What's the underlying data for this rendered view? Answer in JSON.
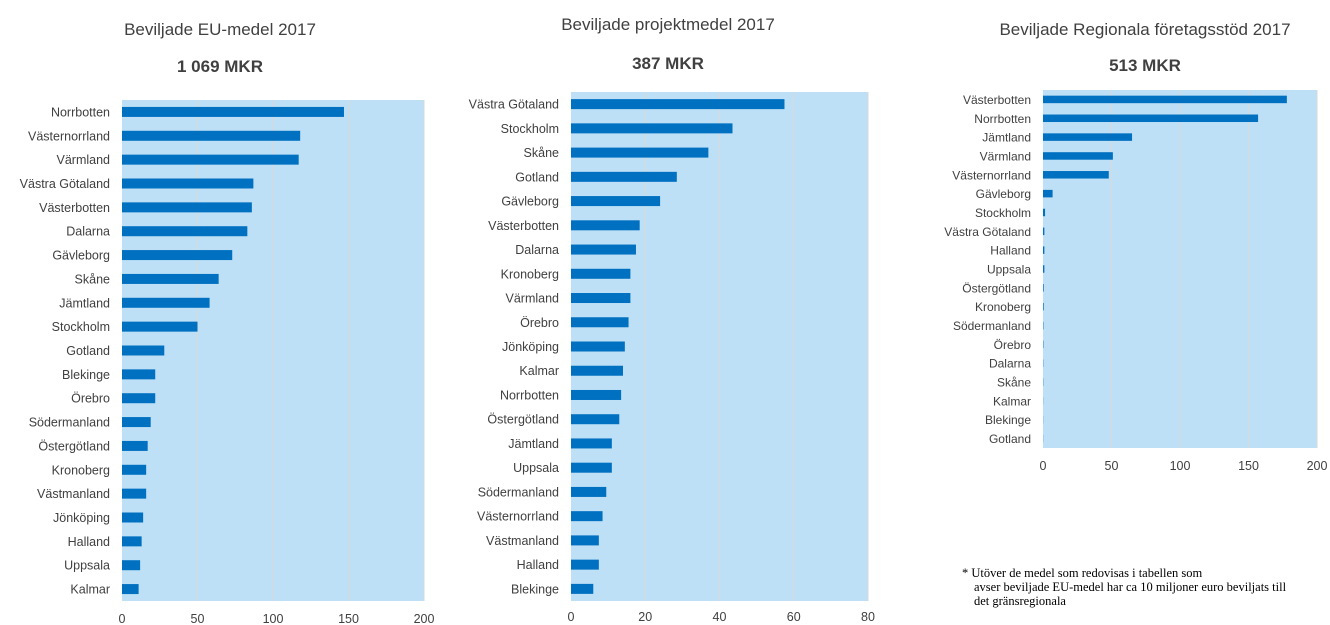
{
  "chart_data": [
    {
      "type": "bar",
      "orientation": "horizontal",
      "title": "Beviljade EU-medel 2017",
      "subtitle": "1 069 MKR",
      "categories": [
        "Norrbotten",
        "Västernorrland",
        "Värmland",
        "Västra Götaland",
        "Västerbotten",
        "Dalarna",
        "Gävleborg",
        "Skåne",
        "Jämtland",
        "Stockholm",
        "Gotland",
        "Blekinge",
        "Örebro",
        "Södermanland",
        "Östergötland",
        "Kronoberg",
        "Västmanland",
        "Jönköping",
        "Halland",
        "Uppsala",
        "Kalmar"
      ],
      "values": [
        147,
        118,
        117,
        87,
        86,
        83,
        73,
        64,
        58,
        50,
        28,
        22,
        22,
        19,
        17,
        16,
        16,
        14,
        13,
        12,
        11
      ],
      "xlim": [
        0,
        200
      ],
      "xticks": [
        0,
        50,
        100,
        150,
        200
      ],
      "grid": true,
      "colors": {
        "bar": "#0070c0",
        "plot_bg": "#bde0f7",
        "grid": "#d9d9d9"
      }
    },
    {
      "type": "bar",
      "orientation": "horizontal",
      "title": "Beviljade projektmedel 2017",
      "subtitle": "387 MKR",
      "categories": [
        "Västra Götaland",
        "Stockholm",
        "Skåne",
        "Gotland",
        "Gävleborg",
        "Västerbotten",
        "Dalarna",
        "Kronoberg",
        "Värmland",
        "Örebro",
        "Jönköping",
        "Kalmar",
        "Norrbotten",
        "Östergötland",
        "Jämtland",
        "Uppsala",
        "Södermanland",
        "Västernorrland",
        "Västmanland",
        "Halland",
        "Blekinge"
      ],
      "values": [
        57.5,
        43.5,
        37,
        28.5,
        24,
        18.5,
        17.5,
        16,
        16,
        15.5,
        14.5,
        14,
        13.5,
        13,
        11,
        11,
        9.5,
        8.5,
        7.5,
        7.5,
        6
      ],
      "xlim": [
        0,
        80
      ],
      "xticks": [
        0,
        20,
        40,
        60,
        80
      ],
      "grid": true,
      "colors": {
        "bar": "#0070c0",
        "plot_bg": "#bde0f7",
        "grid": "#d9d9d9"
      }
    },
    {
      "type": "bar",
      "orientation": "horizontal",
      "title": "Beviljade Regionala företagsstöd 2017",
      "subtitle": "513 MKR",
      "categories": [
        "Västerbotten",
        "Norrbotten",
        "Jämtland",
        "Värmland",
        "Västernorrland",
        "Gävleborg",
        "Stockholm",
        "Västra Götaland",
        "Halland",
        "Uppsala",
        "Östergötland",
        "Kronoberg",
        "Södermanland",
        "Örebro",
        "Dalarna",
        "Skåne",
        "Kalmar",
        "Blekinge",
        "Gotland"
      ],
      "values": [
        178,
        157,
        65,
        51,
        48,
        7,
        1.5,
        1,
        1,
        1,
        0.5,
        0.5,
        0.3,
        0.3,
        0.2,
        0.2,
        0.1,
        0.1,
        0.1
      ],
      "xlim": [
        0,
        200
      ],
      "xticks": [
        0,
        50,
        100,
        150,
        200
      ],
      "grid": true,
      "colors": {
        "bar": "#0070c0",
        "plot_bg": "#bde0f7",
        "grid": "#d9d9d9"
      }
    }
  ],
  "footnote": {
    "first_line": "* Utöver de medel som redovisas i tabellen som",
    "rest": "avser beviljade EU-medel har ca 10 miljoner euro beviljats till det gränsregionala"
  }
}
